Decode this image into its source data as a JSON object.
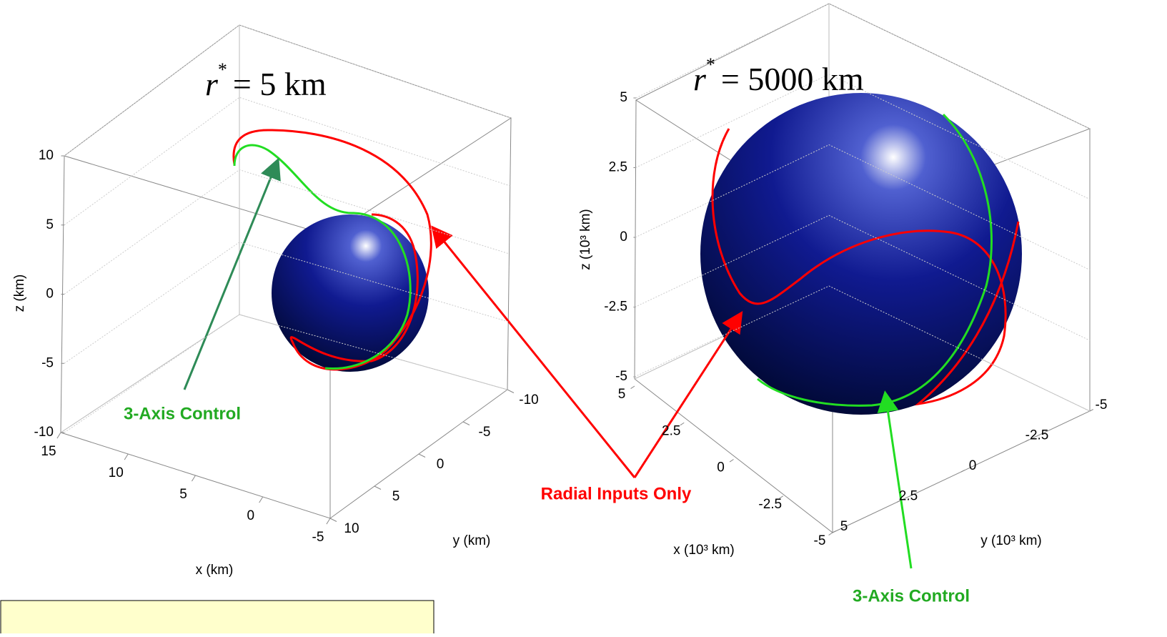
{
  "panels": [
    {
      "title": {
        "symbol": "r",
        "superscript": "*",
        "text": "= 5 km"
      },
      "xlabel": "x (km)",
      "ylabel": "y (km)",
      "zlabel": "z (km)",
      "xlim": [
        -5,
        15
      ],
      "xticks": [
        15,
        10,
        5,
        0,
        -5
      ],
      "ylim": [
        -10,
        10
      ],
      "yticks": [
        -10,
        -5,
        0,
        5,
        10
      ],
      "zlim": [
        -10,
        10
      ],
      "zticks": [
        -10,
        -5,
        0,
        5,
        10
      ],
      "grid": true
    },
    {
      "title": {
        "symbol": "r",
        "superscript": "*",
        "text": "= 5000 km"
      },
      "xlabel": "x (10³ km)",
      "ylabel": "y (10³ km)",
      "zlabel": "z (10³ km)",
      "xlim": [
        -5,
        5
      ],
      "xticks": [
        5,
        2.5,
        0,
        -2.5,
        -5
      ],
      "ylim": [
        -5,
        5
      ],
      "yticks": [
        5,
        2.5,
        0,
        -2.5,
        -5
      ],
      "zlim": [
        -5,
        5
      ],
      "zticks": [
        -5,
        -2.5,
        0,
        2.5,
        5
      ],
      "grid": true
    }
  ],
  "annotations": {
    "left_control": "3-Axis Control",
    "radial": "Radial Inputs Only",
    "right_control": "3-Axis Control"
  }
}
